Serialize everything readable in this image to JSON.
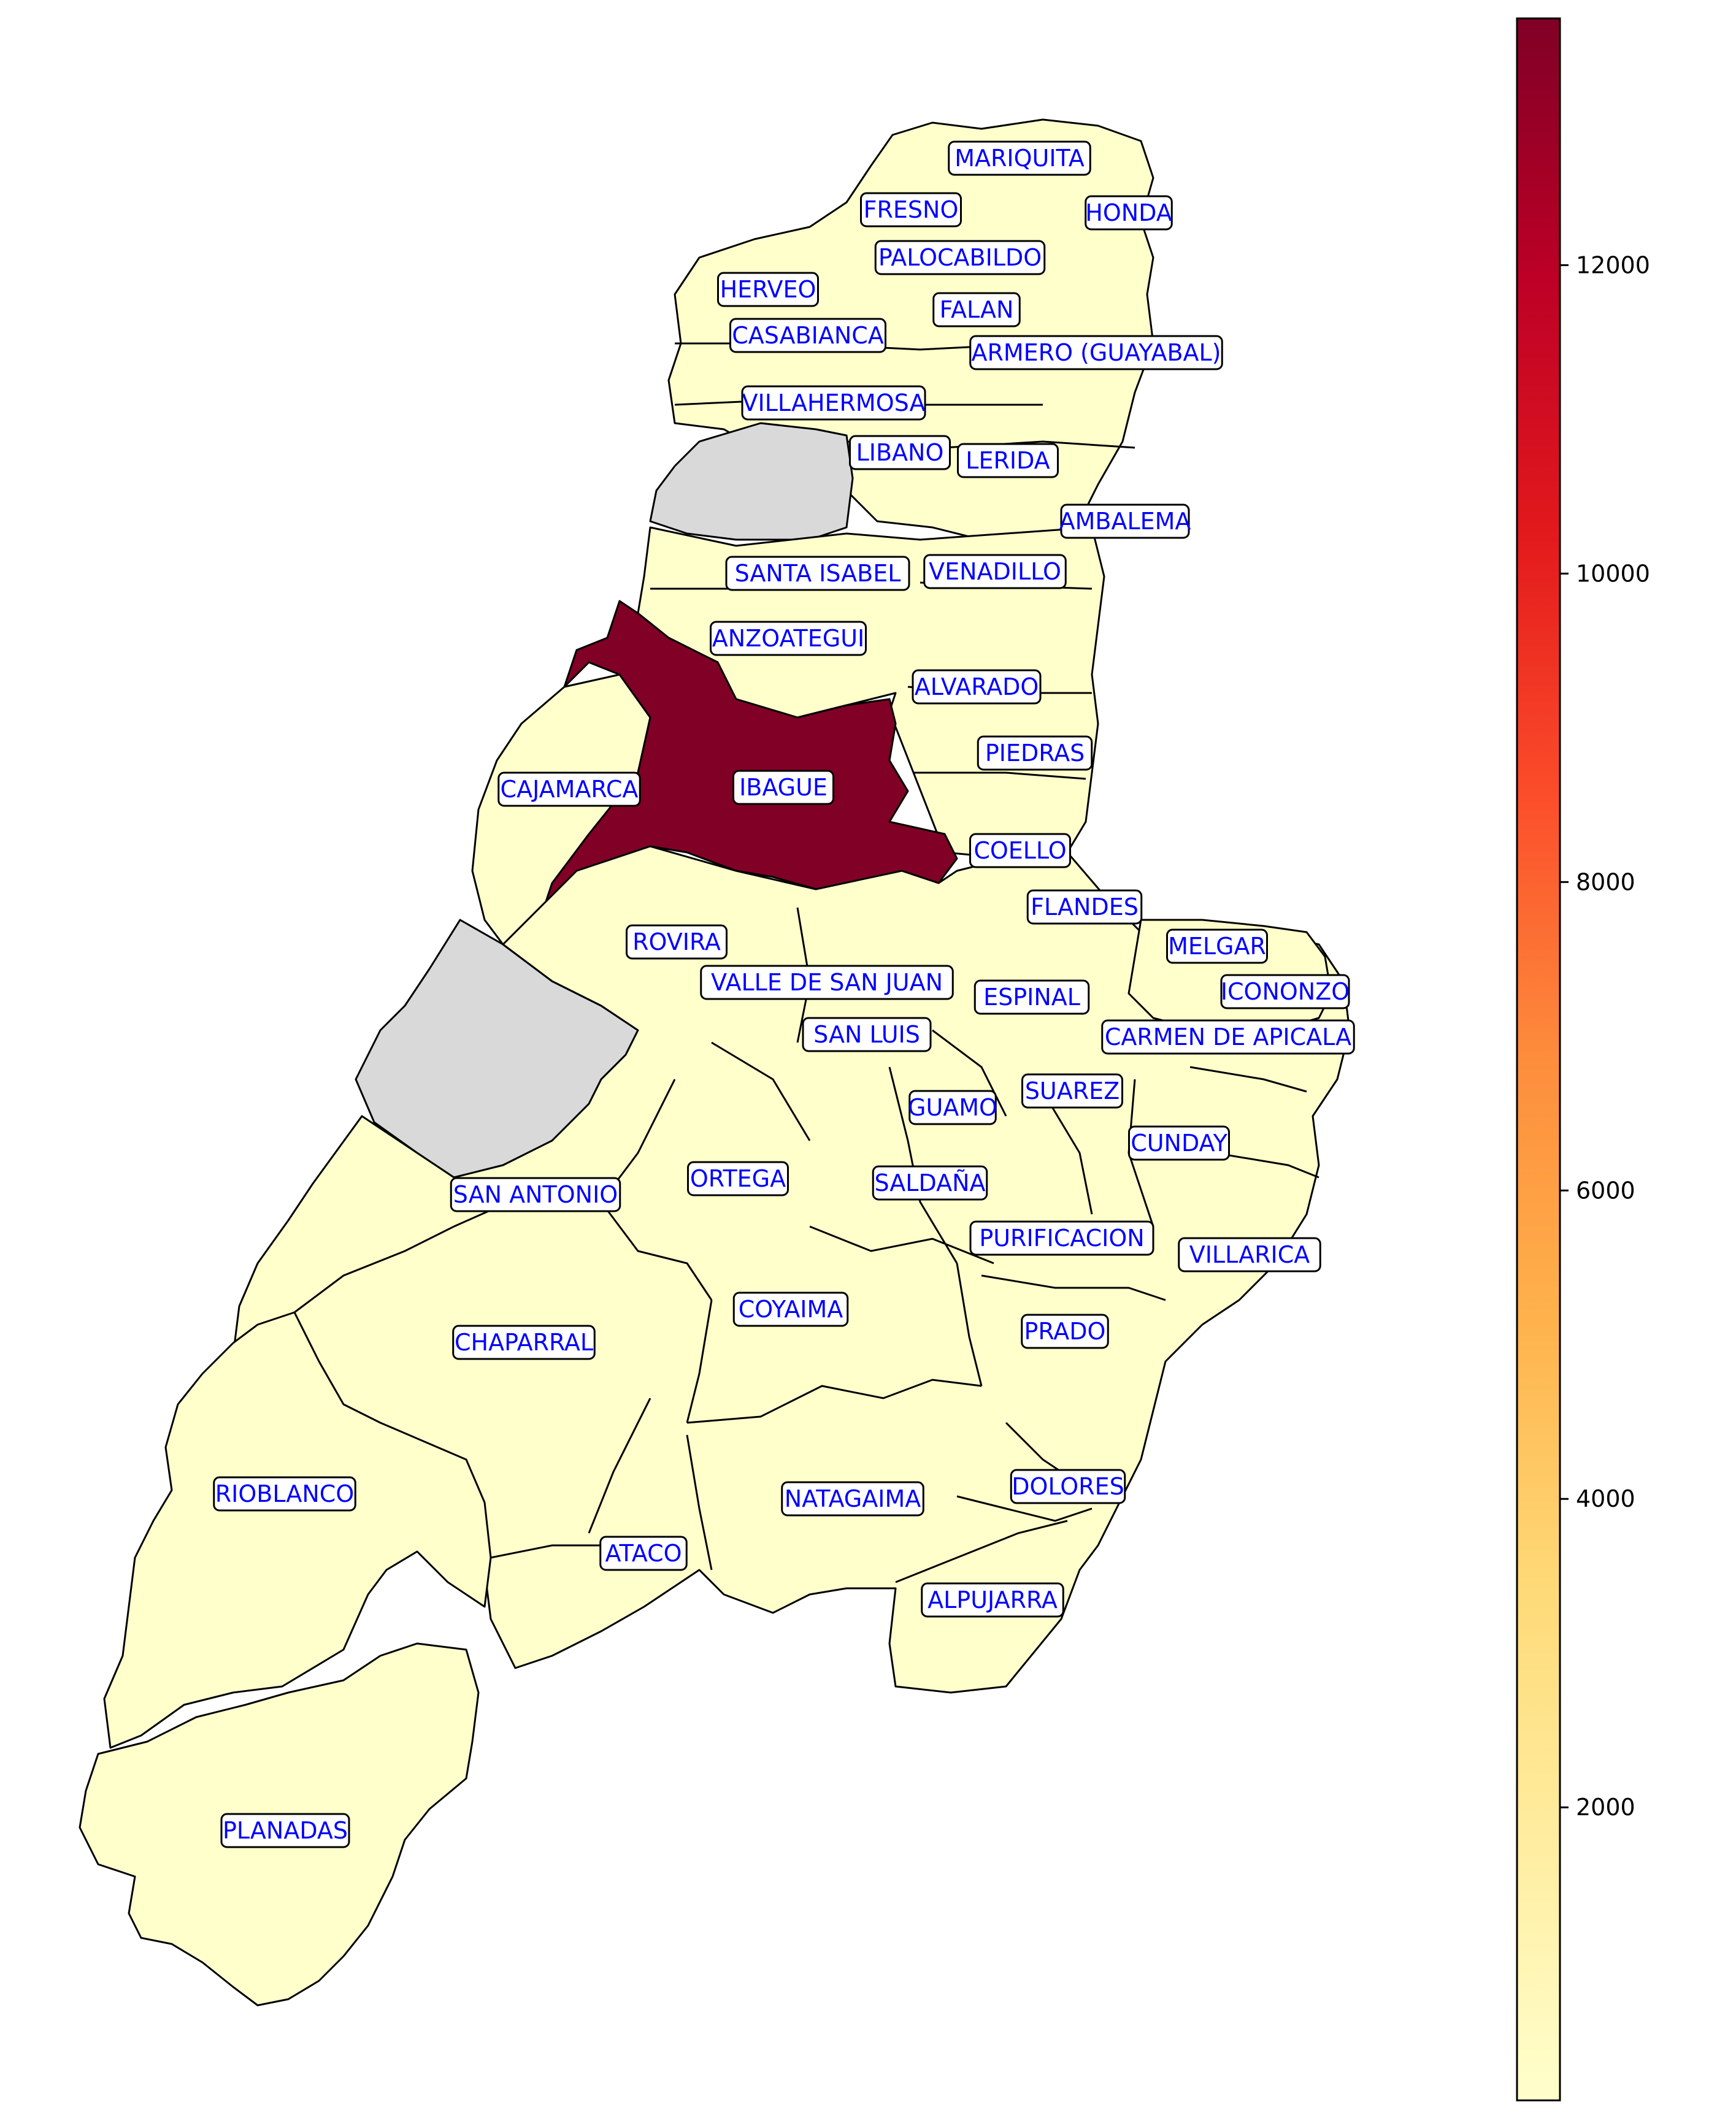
{
  "colors": {
    "low": "#ffffcc",
    "high": "#800026",
    "no_data": "#d9d9d9",
    "label_text": "#0000ff",
    "colormap": [
      "#ffffcc",
      "#ffeda0",
      "#fed976",
      "#feb24c",
      "#fd8d3c",
      "#fc4e2a",
      "#e31a1c",
      "#bd0026",
      "#800026"
    ]
  },
  "colorbar": {
    "min": 100,
    "max": 13600,
    "ticks": [
      {
        "value": 2000,
        "label": "2000"
      },
      {
        "value": 4000,
        "label": "4000"
      },
      {
        "value": 6000,
        "label": "6000"
      },
      {
        "value": 8000,
        "label": "8000"
      },
      {
        "value": 10000,
        "label": "10000"
      },
      {
        "value": 12000,
        "label": "12000"
      }
    ]
  },
  "municipalities": [
    {
      "name": "MARIQUITA",
      "fill": "low"
    },
    {
      "name": "FRESNO",
      "fill": "low"
    },
    {
      "name": "HONDA",
      "fill": "low"
    },
    {
      "name": "PALOCABILDO",
      "fill": "low"
    },
    {
      "name": "HERVEO",
      "fill": "low"
    },
    {
      "name": "FALAN",
      "fill": "low"
    },
    {
      "name": "CASABIANCA",
      "fill": "low"
    },
    {
      "name": "ARMERO (GUAYABAL)",
      "fill": "low"
    },
    {
      "name": "VILLAHERMOSA",
      "fill": "low"
    },
    {
      "name": "LIBANO",
      "fill": "low"
    },
    {
      "name": "LERIDA",
      "fill": "low"
    },
    {
      "name": "AMBALEMA",
      "fill": "low"
    },
    {
      "name": "SANTA ISABEL",
      "fill": "low"
    },
    {
      "name": "VENADILLO",
      "fill": "low"
    },
    {
      "name": "ANZOATEGUI",
      "fill": "low"
    },
    {
      "name": "ALVARADO",
      "fill": "low"
    },
    {
      "name": "PIEDRAS",
      "fill": "low"
    },
    {
      "name": "CAJAMARCA",
      "fill": "low"
    },
    {
      "name": "IBAGUE",
      "fill": "high"
    },
    {
      "name": "COELLO",
      "fill": "low"
    },
    {
      "name": "FLANDES",
      "fill": "low"
    },
    {
      "name": "MELGAR",
      "fill": "low"
    },
    {
      "name": "ROVIRA",
      "fill": "low"
    },
    {
      "name": "VALLE DE SAN JUAN",
      "fill": "low"
    },
    {
      "name": "ESPINAL",
      "fill": "mid"
    },
    {
      "name": "ICONONZO",
      "fill": "low"
    },
    {
      "name": "CARMEN DE APICALA",
      "fill": "low"
    },
    {
      "name": "SAN LUIS",
      "fill": "low"
    },
    {
      "name": "SUAREZ",
      "fill": "low"
    },
    {
      "name": "GUAMO",
      "fill": "low"
    },
    {
      "name": "CUNDAY",
      "fill": "low"
    },
    {
      "name": "ORTEGA",
      "fill": "low"
    },
    {
      "name": "SALDAÑA",
      "fill": "low"
    },
    {
      "name": "SAN ANTONIO",
      "fill": "low"
    },
    {
      "name": "PURIFICACION",
      "fill": "low"
    },
    {
      "name": "VILLARICA",
      "fill": "low"
    },
    {
      "name": "COYAIMA",
      "fill": "low"
    },
    {
      "name": "PRADO",
      "fill": "low"
    },
    {
      "name": "CHAPARRAL",
      "fill": "low"
    },
    {
      "name": "DOLORES",
      "fill": "low"
    },
    {
      "name": "RIOBLANCO",
      "fill": "low"
    },
    {
      "name": "NATAGAIMA",
      "fill": "low"
    },
    {
      "name": "ATACO",
      "fill": "low"
    },
    {
      "name": "ALPUJARRA",
      "fill": "low"
    },
    {
      "name": "PLANADAS",
      "fill": "low"
    }
  ]
}
